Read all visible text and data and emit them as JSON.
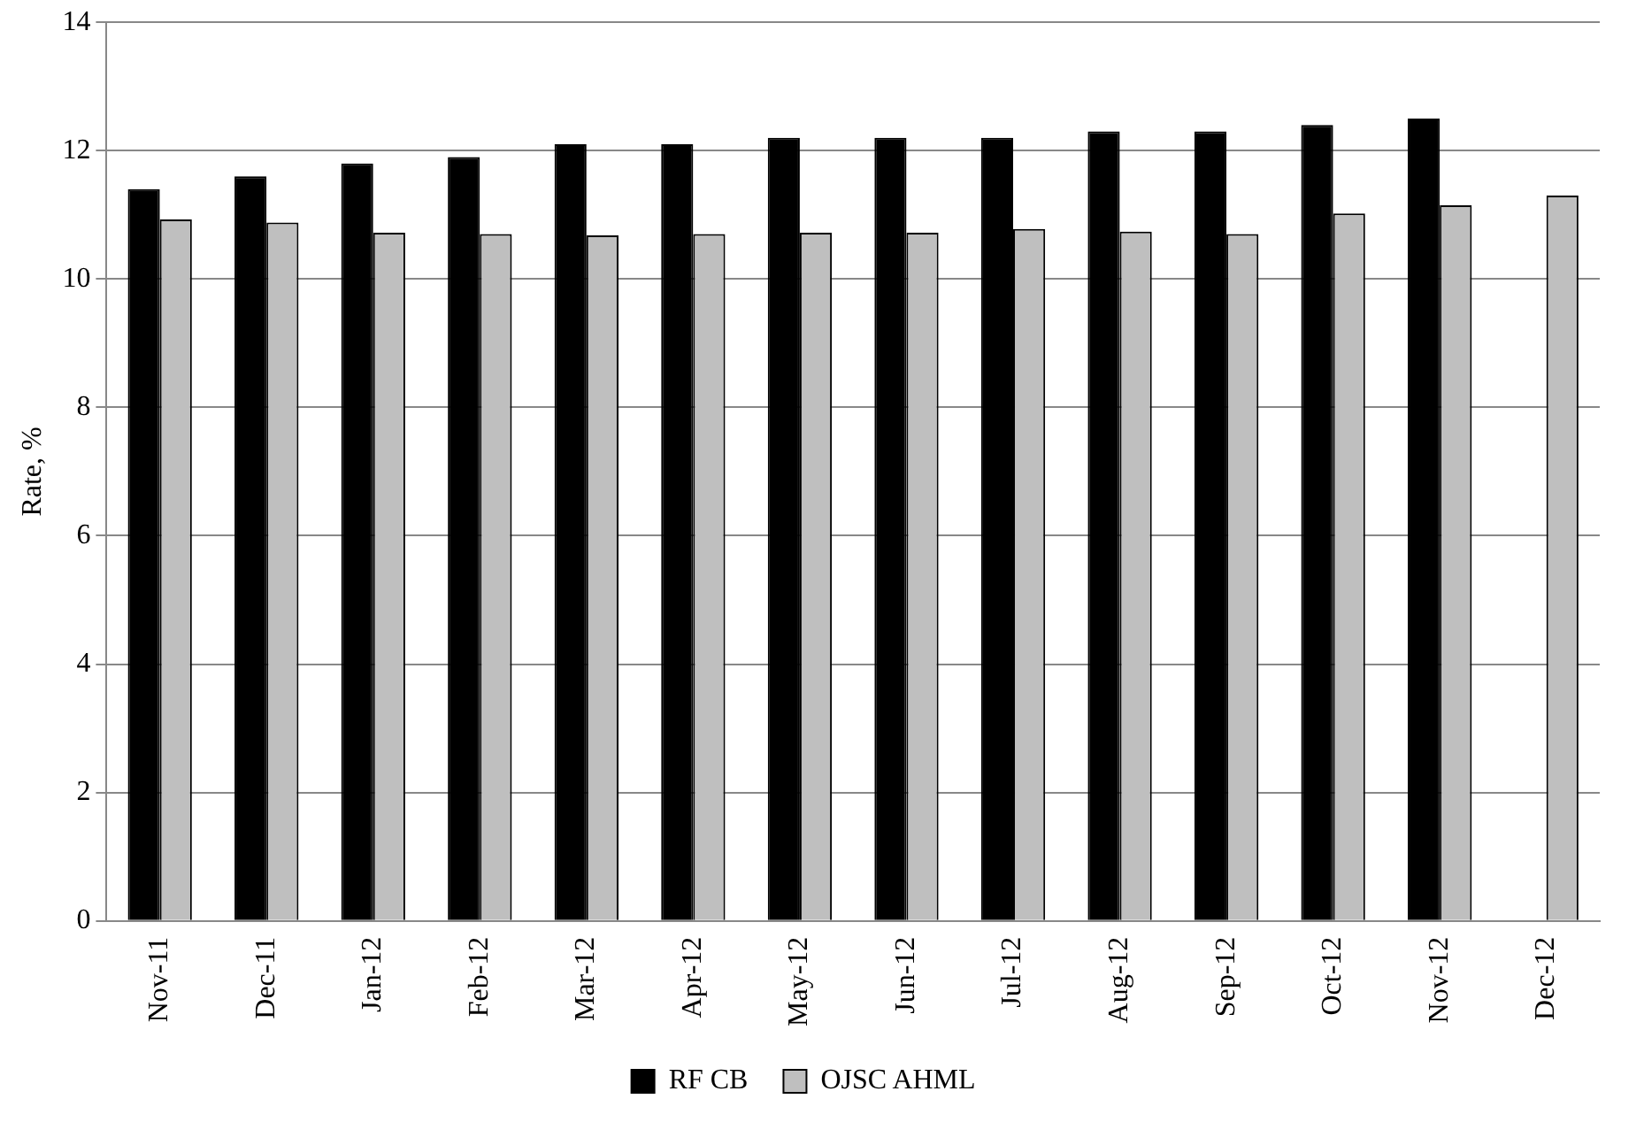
{
  "chart_data": {
    "type": "bar",
    "ylabel": "Rate, %",
    "categories": [
      "Nov-11",
      "Dec-11",
      "Jan-12",
      "Feb-12",
      "Mar-12",
      "Apr-12",
      "May-12",
      "Jun-12",
      "Jul-12",
      "Aug-12",
      "Sep-12",
      "Oct-12",
      "Nov-12",
      "Dec-12"
    ],
    "series": [
      {
        "name": "RF CB",
        "color": "#000000",
        "values": [
          11.4,
          11.6,
          11.8,
          11.9,
          12.1,
          12.1,
          12.2,
          12.2,
          12.2,
          12.3,
          12.3,
          12.4,
          12.5,
          null
        ]
      },
      {
        "name": "OJSC AHML",
        "color": "#bfbfbf",
        "values": [
          10.93,
          10.88,
          10.72,
          10.7,
          10.68,
          10.7,
          10.72,
          10.72,
          10.78,
          10.74,
          10.7,
          11.02,
          11.15,
          11.3
        ]
      }
    ],
    "ylim": [
      0,
      14
    ],
    "yticks": [
      0,
      2,
      4,
      6,
      8,
      10,
      12,
      14
    ],
    "grid": "y",
    "legend": "bottom"
  }
}
